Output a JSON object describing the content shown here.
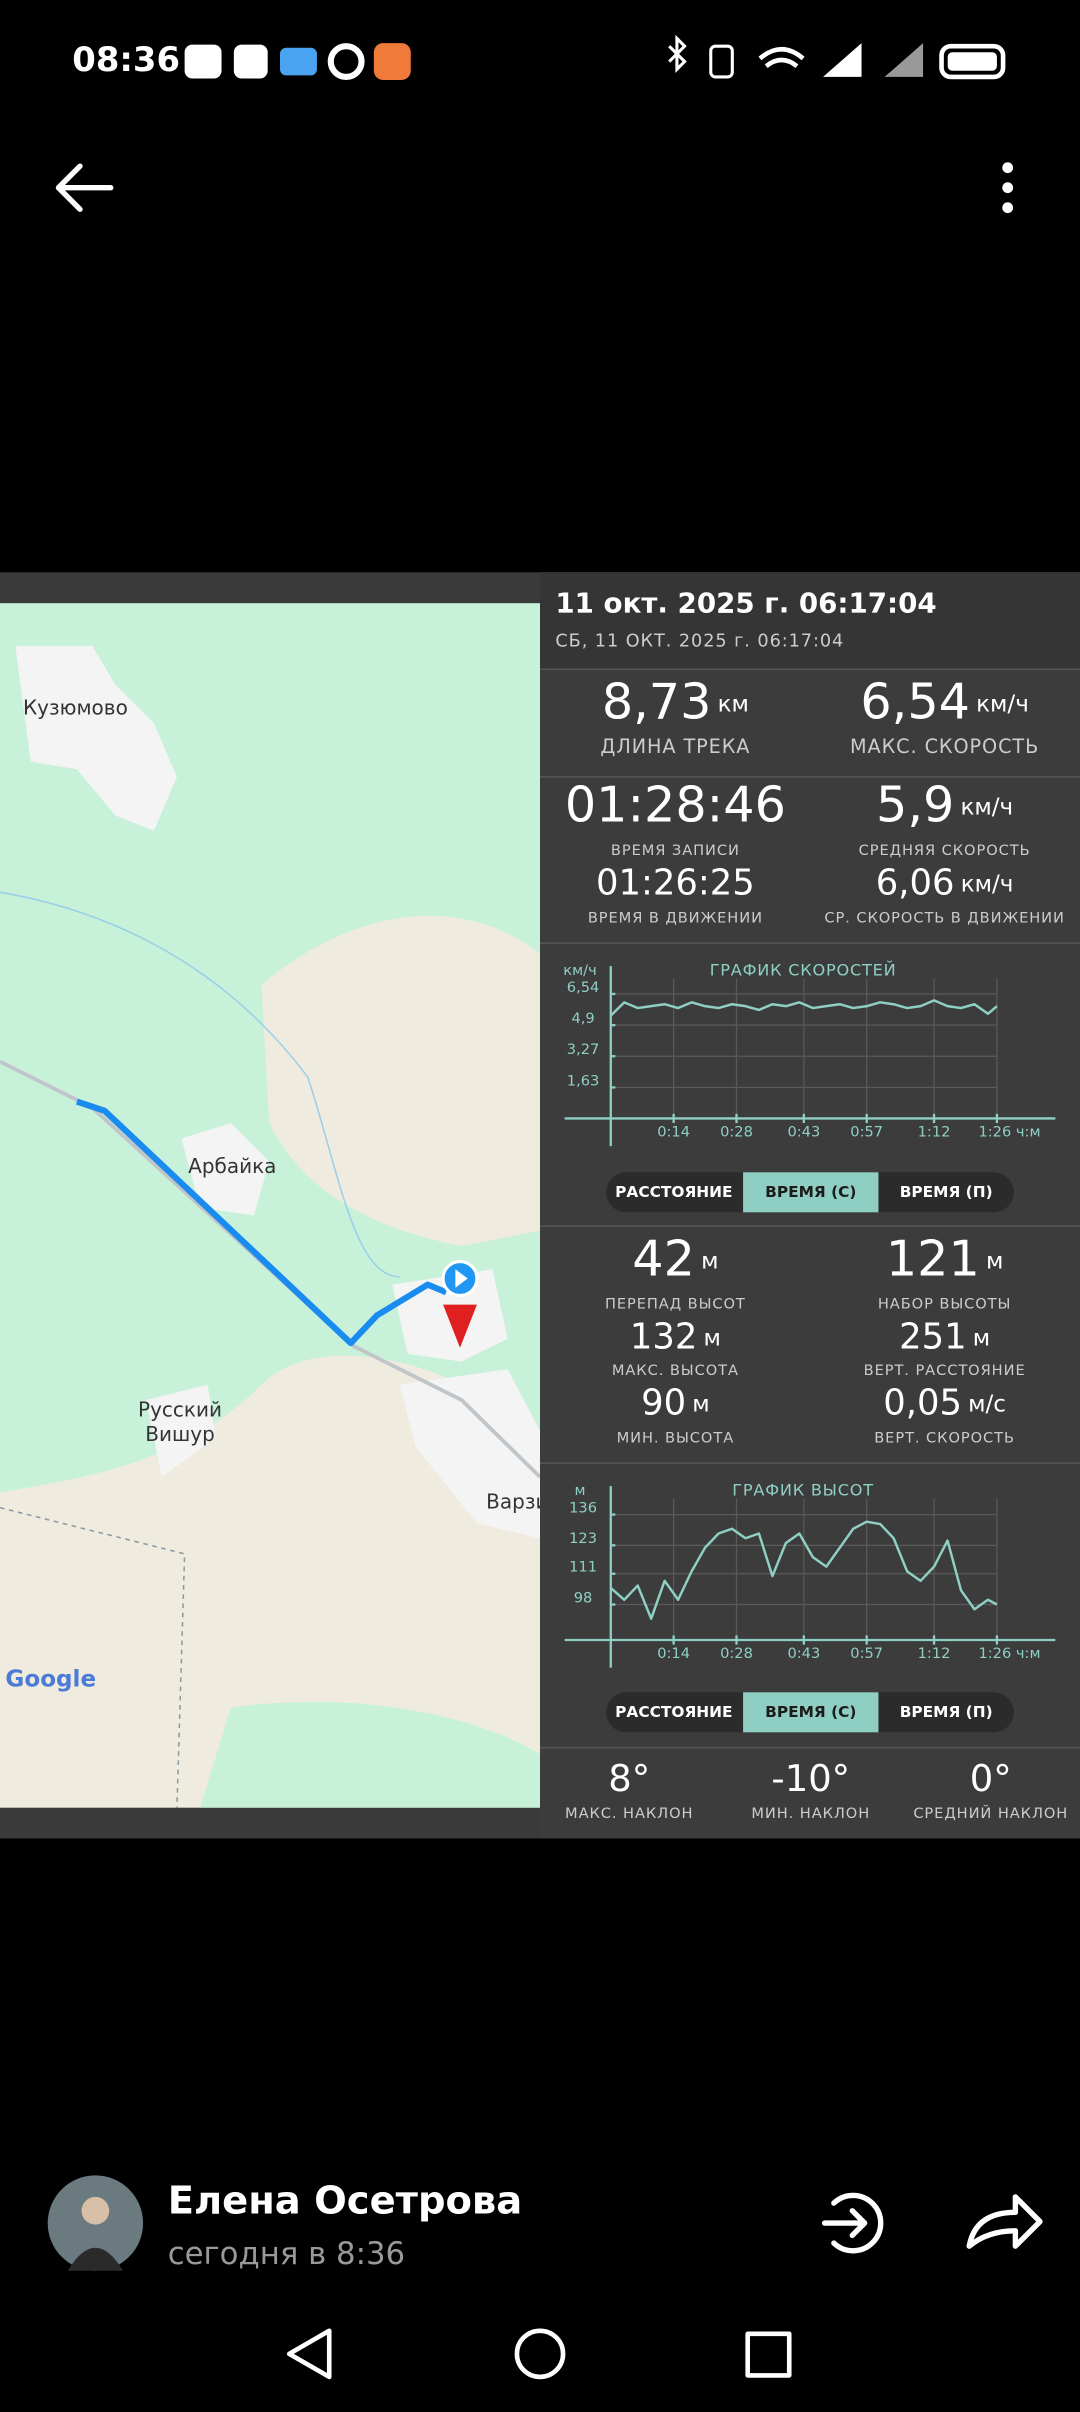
{
  "status_bar": {
    "time": "08:36"
  },
  "track": {
    "title": "11 окт. 2025 г. 06:17:04",
    "subtitle": "СБ, 11 ОКТ. 2025 г. 06:17:04",
    "map": {
      "places": [
        "Кузюмово",
        "Арбайка",
        "Русский",
        "Вишур",
        "Варзи"
      ],
      "attribution": "Google"
    },
    "main_stats": [
      {
        "value": "8,73",
        "unit": "км",
        "label": "ДЛИНА ТРЕКА"
      },
      {
        "value": "6,54",
        "unit": "км/ч",
        "label": "МАКС. СКОРОСТЬ"
      }
    ],
    "time_stats": [
      {
        "value": "01:28:46",
        "unit": "",
        "label": "ВРЕМЯ ЗАПИСИ"
      },
      {
        "value": "5,9",
        "unit": "км/ч",
        "label": "СРЕДНЯЯ СКОРОСТЬ"
      },
      {
        "value": "01:26:25",
        "unit": "",
        "label": "ВРЕМЯ В ДВИЖЕНИИ"
      },
      {
        "value": "6,06",
        "unit": "км/ч",
        "label": "СР. СКОРОСТЬ В ДВИЖЕНИИ"
      }
    ],
    "elevation_stats": [
      {
        "value": "42",
        "unit": "м",
        "label": "ПЕРЕПАД ВЫСОТ"
      },
      {
        "value": "121",
        "unit": "м",
        "label": "НАБОР ВЫСОТЫ"
      },
      {
        "value": "132",
        "unit": "м",
        "label": "МАКС. ВЫСОТА"
      },
      {
        "value": "251",
        "unit": "м",
        "label": "ВЕРТ. РАССТОЯНИЕ"
      },
      {
        "value": "90",
        "unit": "м",
        "label": "МИН. ВЫСОТА"
      },
      {
        "value": "0,05",
        "unit": "м/с",
        "label": "ВЕРТ. СКОРОСТЬ"
      }
    ],
    "segment_labels": [
      "РАССТОЯНИЕ",
      "ВРЕМЯ (С)",
      "ВРЕМЯ (П)"
    ],
    "slope_stats": [
      {
        "value": "8°",
        "label": "МАКС. НАКЛОН"
      },
      {
        "value": "-10°",
        "label": "МИН. НАКЛОН"
      },
      {
        "value": "0°",
        "label": "СРЕДНИЙ НАКЛОН"
      }
    ]
  },
  "chart_data": [
    {
      "type": "line",
      "title": "ГРАФИК СКОРОСТЕЙ",
      "y_unit": "км/ч",
      "color": "#8fd0c4",
      "grid": true,
      "x": [
        0,
        3,
        6,
        9,
        12,
        15,
        18,
        21,
        24,
        27,
        30,
        33,
        36,
        39,
        42,
        45,
        48,
        51,
        54,
        57,
        60,
        63,
        66,
        69,
        72,
        75,
        78,
        81,
        84,
        86
      ],
      "values": [
        5.4,
        6.1,
        5.8,
        5.9,
        6.0,
        5.8,
        6.1,
        5.9,
        5.8,
        6.0,
        5.9,
        5.7,
        6.0,
        5.9,
        6.1,
        5.8,
        5.9,
        6.0,
        5.8,
        5.9,
        6.1,
        6.0,
        5.8,
        5.9,
        6.2,
        5.9,
        5.8,
        6.0,
        5.5,
        5.9
      ],
      "xlim": [
        0,
        86
      ],
      "ylim": [
        0,
        8
      ],
      "xticks": [
        {
          "value": 14,
          "label": "0:14"
        },
        {
          "value": 28,
          "label": "0:28"
        },
        {
          "value": 43,
          "label": "0:43"
        },
        {
          "value": 57,
          "label": "0:57"
        },
        {
          "value": 72,
          "label": "1:12"
        },
        {
          "value": 86,
          "label": "1:26 ч:м"
        }
      ],
      "yticks": [
        {
          "value": 1.63,
          "label": "1,63"
        },
        {
          "value": 3.27,
          "label": "3,27"
        },
        {
          "value": 4.9,
          "label": "4,9"
        },
        {
          "value": 6.54,
          "label": "6,54"
        }
      ]
    },
    {
      "type": "line",
      "title": "ГРАФИК ВЫСОТ",
      "y_unit": "м",
      "color": "#8fd0c4",
      "grid": true,
      "x": [
        0,
        3,
        6,
        9,
        12,
        15,
        18,
        21,
        24,
        27,
        30,
        33,
        36,
        39,
        42,
        45,
        48,
        51,
        54,
        57,
        60,
        63,
        66,
        69,
        72,
        75,
        78,
        81,
        84,
        86
      ],
      "values": [
        105,
        100,
        106,
        92,
        108,
        100,
        112,
        122,
        128,
        130,
        126,
        128,
        110,
        124,
        128,
        118,
        114,
        122,
        130,
        133,
        132,
        126,
        112,
        108,
        114,
        125,
        104,
        96,
        100,
        98
      ],
      "xlim": [
        0,
        86
      ],
      "ylim": [
        83,
        148
      ],
      "xticks": [
        {
          "value": 14,
          "label": "0:14"
        },
        {
          "value": 28,
          "label": "0:28"
        },
        {
          "value": 43,
          "label": "0:43"
        },
        {
          "value": 57,
          "label": "0:57"
        },
        {
          "value": 72,
          "label": "1:12"
        },
        {
          "value": 86,
          "label": "1:26 ч:м"
        }
      ],
      "yticks": [
        98,
        111,
        123,
        136
      ]
    }
  ],
  "post": {
    "author": "Елена Осетрова",
    "time": "сегодня в 8:36"
  }
}
